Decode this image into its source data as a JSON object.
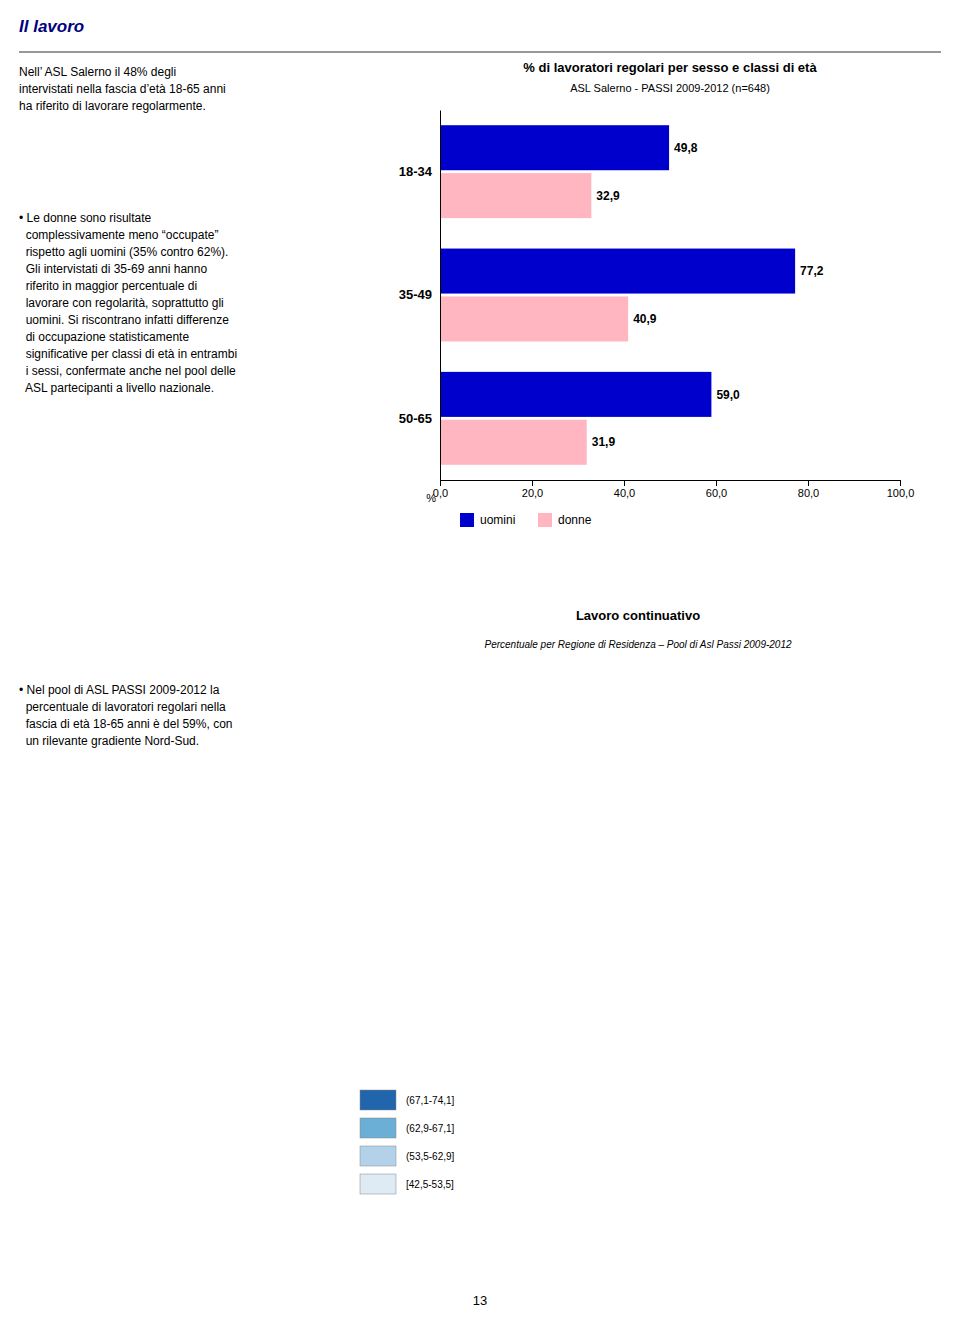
{
  "header": {
    "text": "Il lavoro",
    "color": "#000080"
  },
  "intro": "Nell’ ASL Salerno il 48% degli\nintervistati nella fascia d’età 18-65 anni\nha riferito di lavorare regolarmente.",
  "bullets": [
    "• Le donne sono risultate\n  complessivamente meno “occupate”\n  rispetto agli uomini (35% contro 62%).\n  Gli intervistati di 35-69 anni hanno\n  riferito in maggior percentuale di\n  lavorare con regolarità, soprattutto gli\n  uomini. Si riscontrano infatti differenze\n  di occupazione statisticamente\n  significative per classi di età in entrambi\n  i sessi, confermate anche nel pool delle\n  ASL partecipanti a livello nazionale.",
    "• Nel pool di ASL PASSI 2009-2012 la\n  percentuale di lavoratori regolari nella\n  fascia di età 18-65 anni è del 59%, con\n  un rilevante gradiente Nord-Sud."
  ],
  "page_number": "13",
  "chart_data": [
    {
      "type": "bar",
      "orientation": "horizontal",
      "title": "% di lavoratori regolari per sesso e classi di età",
      "subtitle": "ASL Salerno - PASSI 2009-2012  (n=648)",
      "categories": [
        "18-34",
        "35-49",
        "50-65"
      ],
      "series": [
        {
          "name": "uomini",
          "color": "#0000CD",
          "values": [
            49.8,
            77.2,
            59.0
          ],
          "value_labels": [
            "49,8",
            "77,2",
            "59,0"
          ]
        },
        {
          "name": "donne",
          "color": "#FFB6C1",
          "values": [
            32.9,
            40.9,
            31.9
          ],
          "value_labels": [
            "32,9",
            "40,9",
            "31,9"
          ]
        }
      ],
      "xlim": [
        0,
        100
      ],
      "xticks": [
        {
          "value": 0,
          "label": "0,0"
        },
        {
          "value": 20,
          "label": "20,0"
        },
        {
          "value": 40,
          "label": "40,0"
        },
        {
          "value": 60,
          "label": "60,0"
        },
        {
          "value": 80,
          "label": "80,0"
        },
        {
          "value": 100,
          "label": "100,0"
        }
      ],
      "xlabel": "%",
      "data_labels": true,
      "grid": false,
      "legend": "bottom"
    },
    {
      "type": "map",
      "title": "Lavoro continuativo",
      "subtitle": "Percentuale per Regione di Residenza – Pool di Asl Passi 2009-2012",
      "categories": [
        "(67,1-74,1]",
        "(62,9-67,1]",
        "(53,5-62,9]",
        "[42,5-53,5]"
      ],
      "colors": [
        "#2166ac",
        "#6baed6",
        "#b3d2e9",
        "#deeaf4"
      ]
    }
  ]
}
